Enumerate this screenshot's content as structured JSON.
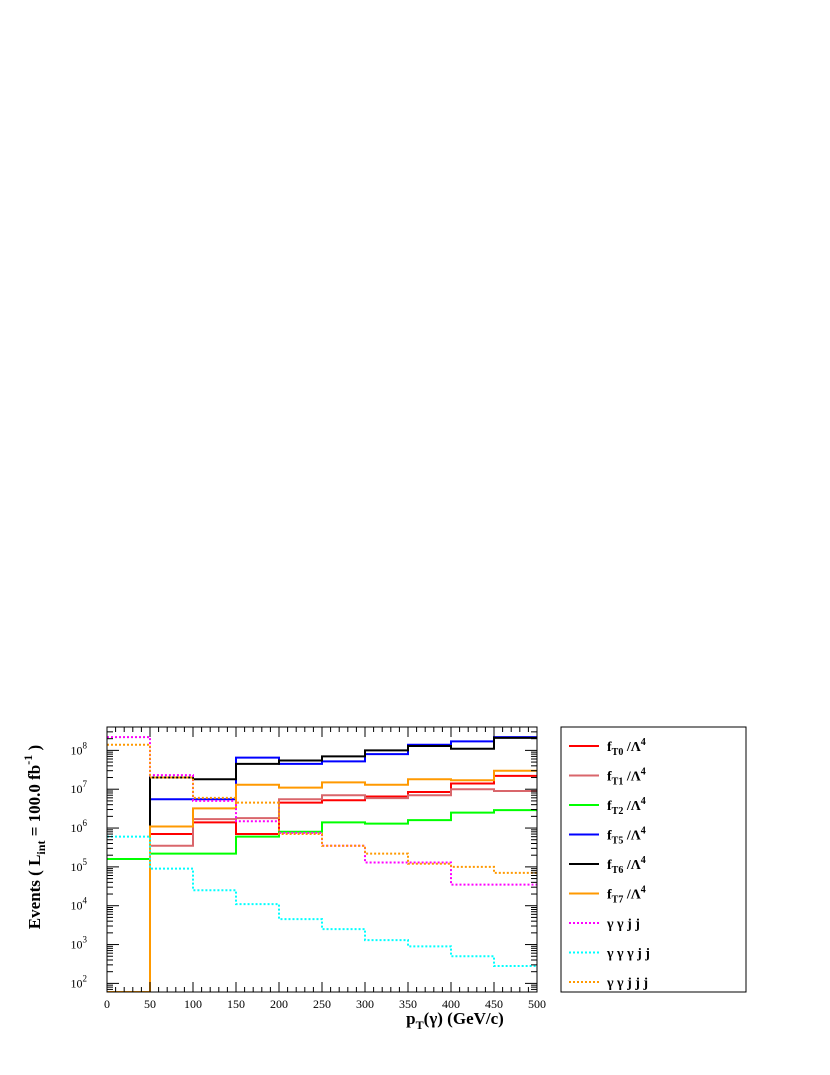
{
  "chart_data": {
    "type": "line",
    "step": true,
    "xlabel": "p_T(γ) (GeV/c)",
    "ylabel": "Events ( L_int = 100.0 fb^-1 )",
    "xlim": [
      0,
      500
    ],
    "ylim": [
      60,
      400000000
    ],
    "yscale": "log",
    "grid": false,
    "legend_position": "right",
    "x_ticks": [
      0,
      50,
      100,
      150,
      200,
      250,
      300,
      350,
      400,
      450,
      500
    ],
    "y_ticks": [
      {
        "value": 100,
        "base": "10",
        "exp": "2"
      },
      {
        "value": 1000,
        "base": "10",
        "exp": "3"
      },
      {
        "value": 10000,
        "base": "10",
        "exp": "4"
      },
      {
        "value": 100000,
        "base": "10",
        "exp": "5"
      },
      {
        "value": 1000000,
        "base": "10",
        "exp": "6"
      },
      {
        "value": 10000000,
        "base": "10",
        "exp": "7"
      },
      {
        "value": 100000000,
        "base": "10",
        "exp": "8"
      }
    ],
    "bin_edges": [
      0,
      50,
      100,
      150,
      200,
      250,
      300,
      350,
      400,
      450,
      500
    ],
    "series": [
      {
        "label_main": "f",
        "label_sub": "T0",
        "label_rest": " /Λ",
        "label_sup": "4",
        "color": "#ff0000",
        "style": "solid",
        "values": [
          60,
          700000,
          1400000,
          700000,
          4500000,
          5200000,
          6500000,
          8500000,
          14000000,
          22000000
        ]
      },
      {
        "label_main": "f",
        "label_sub": "T1",
        "label_rest": " /Λ",
        "label_sup": "4",
        "color": "#d9666b",
        "style": "solid",
        "values": [
          60,
          350000,
          1700000,
          1800000,
          5500000,
          7000000,
          5900000,
          7000000,
          10000000,
          9000000
        ]
      },
      {
        "label_main": "f",
        "label_sub": "T2",
        "label_rest": " /Λ",
        "label_sup": "4",
        "color": "#00ff00",
        "style": "solid",
        "values": [
          160000,
          220000,
          220000,
          600000,
          800000,
          1400000,
          1300000,
          1600000,
          2500000,
          2900000
        ]
      },
      {
        "label_main": "f",
        "label_sub": "T5",
        "label_rest": " /Λ",
        "label_sup": "4",
        "color": "#0000ff",
        "style": "solid",
        "values": [
          60,
          5500000,
          5500000,
          65000000,
          45000000,
          52000000,
          80000000,
          140000000,
          170000000,
          220000000
        ]
      },
      {
        "label_main": "f",
        "label_sub": "T6",
        "label_rest": " /Λ",
        "label_sup": "4",
        "color": "#000000",
        "style": "solid",
        "values": [
          60,
          20000000,
          18000000,
          45000000,
          55000000,
          70000000,
          100000000,
          130000000,
          110000000,
          210000000
        ]
      },
      {
        "label_main": "f",
        "label_sub": "T7",
        "label_rest": " /Λ",
        "label_sup": "4",
        "color": "#ff9900",
        "style": "solid",
        "values": [
          60,
          1100000,
          3200000,
          13000000,
          11000000,
          15000000,
          13000000,
          18000000,
          17000000,
          30000000
        ]
      },
      {
        "label_main": "γ  γ j j",
        "label_sub": "",
        "label_rest": "",
        "label_sup": "",
        "color": "#ff00ff",
        "style": "dotted",
        "values": [
          220000000,
          23000000,
          5000000,
          1500000,
          750000,
          350000,
          130000,
          130000,
          35000,
          35000
        ]
      },
      {
        "label_main": "γ  γ  γ j j",
        "label_sub": "",
        "label_rest": "",
        "label_sup": "",
        "color": "#00ffff",
        "style": "dotted",
        "values": [
          600000,
          90000,
          25000,
          11000,
          4500,
          2500,
          1300,
          900,
          500,
          280
        ]
      },
      {
        "label_main": "γ  γ j j j",
        "label_sub": "",
        "label_rest": "",
        "label_sup": "",
        "color": "#ff9900",
        "style": "dotted",
        "values": [
          140000000,
          20000000,
          6000000,
          4500000,
          700000,
          350000,
          220000,
          120000,
          100000,
          70000
        ]
      }
    ]
  }
}
